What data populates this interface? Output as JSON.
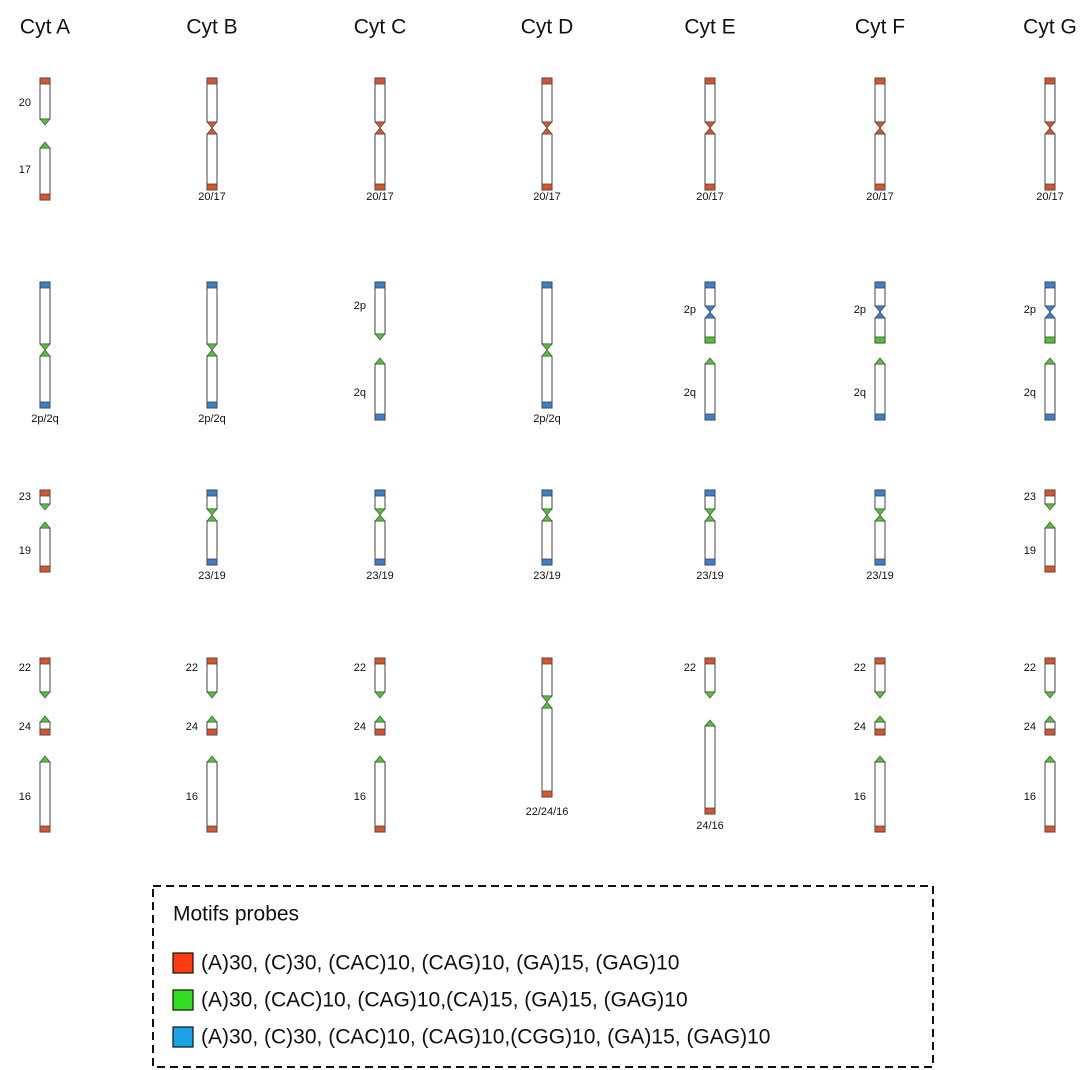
{
  "columns": [
    "Cyt A",
    "Cyt B",
    "Cyt C",
    "Cyt D",
    "Cyt E",
    "Cyt F",
    "Cyt G"
  ],
  "rows": [
    {
      "cells": [
        {
          "labels": [
            "20",
            "17"
          ]
        },
        {
          "labels": [
            "20/17"
          ]
        },
        {
          "labels": [
            "20/17"
          ]
        },
        {
          "labels": [
            "20/17"
          ]
        },
        {
          "labels": [
            "20/17"
          ]
        },
        {
          "labels": [
            "20/17"
          ]
        },
        {
          "labels": [
            "20/17"
          ]
        }
      ]
    },
    {
      "cells": [
        {
          "labels": [
            "2p/2q"
          ]
        },
        {
          "labels": [
            "2p/2q"
          ]
        },
        {
          "labels": [
            "2p",
            "2q"
          ]
        },
        {
          "labels": [
            "2p/2q"
          ]
        },
        {
          "labels": [
            "2p",
            "2q"
          ]
        },
        {
          "labels": [
            "2p",
            "2q"
          ]
        },
        {
          "labels": [
            "2p",
            "2q"
          ]
        }
      ]
    },
    {
      "cells": [
        {
          "labels": [
            "23",
            "19"
          ]
        },
        {
          "labels": [
            "23/19"
          ]
        },
        {
          "labels": [
            "23/19"
          ]
        },
        {
          "labels": [
            "23/19"
          ]
        },
        {
          "labels": [
            "23/19"
          ]
        },
        {
          "labels": [
            "23/19"
          ]
        },
        {
          "labels": [
            "23",
            "19"
          ]
        }
      ]
    },
    {
      "cells": [
        {
          "labels": [
            "22",
            "24",
            "16"
          ]
        },
        {
          "labels": [
            "22",
            "24",
            "16"
          ]
        },
        {
          "labels": [
            "22",
            "24",
            "16"
          ]
        },
        {
          "labels": [
            "22/24/16"
          ]
        },
        {
          "labels": [
            "22",
            "24/16"
          ]
        },
        {
          "labels": [
            "22",
            "24",
            "16"
          ]
        },
        {
          "labels": [
            "22",
            "24",
            "16"
          ]
        }
      ]
    }
  ],
  "legend": {
    "title": "Motifs probes",
    "items": [
      {
        "color": "#ff3b10",
        "text": "(A)30, (C)30, (CAC)10, (CAG)10, (GA)15, (GAG)10"
      },
      {
        "color": "#33dd22",
        "text": "(A)30, (CAC)10, (CAG)10,(CA)15, (GA)15, (GAG)10"
      },
      {
        "color": "#1aa3e8",
        "text": "(A)30, (C)30, (CAC)10, (CAG)10,(CGG)10, (GA)15, (GAG)10"
      }
    ]
  }
}
